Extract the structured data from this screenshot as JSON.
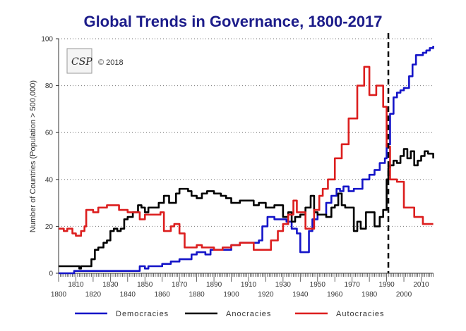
{
  "chart_data": {
    "type": "line",
    "title": "Global Trends in Governance, 1800-2017",
    "xlabel": "",
    "ylabel": "Number of Countries (Population > 500,000)",
    "xlim": [
      1800,
      2017
    ],
    "ylim": [
      0,
      100
    ],
    "x_ticks_lower": [
      "1800",
      "1820",
      "1840",
      "1860",
      "1880",
      "1900",
      "1920",
      "1940",
      "1960",
      "1980",
      "2000"
    ],
    "x_ticks_upper": [
      "1810",
      "1830",
      "1850",
      "1870",
      "1890",
      "1910",
      "1930",
      "1950",
      "1970",
      "1990",
      "2010"
    ],
    "y_ticks": [
      "0",
      "20",
      "40",
      "60",
      "80",
      "100"
    ],
    "grid": "horizontal dotted",
    "legend_position": "bottom",
    "annotations": {
      "copyright": "© 2018",
      "logo": "CSP",
      "reference_line_year": 1991
    },
    "series": [
      {
        "name": "Democracies",
        "color": "#1414c8",
        "points": [
          [
            1800,
            0
          ],
          [
            1808,
            0
          ],
          [
            1809,
            1
          ],
          [
            1845,
            1
          ],
          [
            1847,
            3
          ],
          [
            1850,
            2
          ],
          [
            1852,
            3
          ],
          [
            1860,
            4
          ],
          [
            1865,
            5
          ],
          [
            1870,
            6
          ],
          [
            1875,
            6
          ],
          [
            1877,
            8
          ],
          [
            1880,
            9
          ],
          [
            1885,
            8
          ],
          [
            1888,
            10
          ],
          [
            1895,
            10
          ],
          [
            1900,
            12
          ],
          [
            1905,
            13
          ],
          [
            1914,
            13
          ],
          [
            1916,
            14
          ],
          [
            1918,
            20
          ],
          [
            1921,
            24
          ],
          [
            1925,
            23
          ],
          [
            1932,
            22
          ],
          [
            1935,
            19
          ],
          [
            1938,
            17
          ],
          [
            1940,
            9
          ],
          [
            1943,
            9
          ],
          [
            1945,
            18
          ],
          [
            1947,
            23
          ],
          [
            1950,
            25
          ],
          [
            1953,
            25
          ],
          [
            1955,
            30
          ],
          [
            1958,
            33
          ],
          [
            1961,
            36
          ],
          [
            1963,
            35
          ],
          [
            1965,
            37
          ],
          [
            1968,
            35
          ],
          [
            1971,
            36
          ],
          [
            1974,
            36
          ],
          [
            1976,
            40
          ],
          [
            1978,
            40
          ],
          [
            1980,
            42
          ],
          [
            1983,
            44
          ],
          [
            1986,
            47
          ],
          [
            1989,
            49
          ],
          [
            1990,
            55
          ],
          [
            1992,
            68
          ],
          [
            1994,
            75
          ],
          [
            1996,
            77
          ],
          [
            1998,
            78
          ],
          [
            2000,
            79
          ],
          [
            2003,
            84
          ],
          [
            2005,
            89
          ],
          [
            2007,
            93
          ],
          [
            2009,
            93
          ],
          [
            2011,
            94
          ],
          [
            2013,
            95
          ],
          [
            2015,
            96
          ],
          [
            2017,
            97
          ]
        ]
      },
      {
        "name": "Anocracies",
        "color": "#000000",
        "points": [
          [
            1800,
            3
          ],
          [
            1811,
            3
          ],
          [
            1812,
            2
          ],
          [
            1813,
            3
          ],
          [
            1817,
            3
          ],
          [
            1819,
            6
          ],
          [
            1821,
            10
          ],
          [
            1823,
            11
          ],
          [
            1826,
            13
          ],
          [
            1828,
            14
          ],
          [
            1830,
            18
          ],
          [
            1832,
            19
          ],
          [
            1834,
            18
          ],
          [
            1836,
            19
          ],
          [
            1838,
            23
          ],
          [
            1840,
            24
          ],
          [
            1843,
            26
          ],
          [
            1846,
            29
          ],
          [
            1848,
            28
          ],
          [
            1850,
            26
          ],
          [
            1852,
            28
          ],
          [
            1855,
            28
          ],
          [
            1858,
            30
          ],
          [
            1861,
            33
          ],
          [
            1864,
            30
          ],
          [
            1866,
            30
          ],
          [
            1868,
            34
          ],
          [
            1870,
            36
          ],
          [
            1873,
            36
          ],
          [
            1875,
            35
          ],
          [
            1877,
            33
          ],
          [
            1880,
            32
          ],
          [
            1883,
            34
          ],
          [
            1886,
            35
          ],
          [
            1890,
            34
          ],
          [
            1894,
            33
          ],
          [
            1897,
            32
          ],
          [
            1900,
            30
          ],
          [
            1905,
            31
          ],
          [
            1910,
            31
          ],
          [
            1913,
            29
          ],
          [
            1916,
            30
          ],
          [
            1920,
            28
          ],
          [
            1925,
            29
          ],
          [
            1930,
            24
          ],
          [
            1933,
            26
          ],
          [
            1935,
            22
          ],
          [
            1937,
            24
          ],
          [
            1940,
            25
          ],
          [
            1943,
            28
          ],
          [
            1946,
            33
          ],
          [
            1948,
            26
          ],
          [
            1950,
            25
          ],
          [
            1953,
            25
          ],
          [
            1955,
            24
          ],
          [
            1958,
            28
          ],
          [
            1960,
            29
          ],
          [
            1962,
            34
          ],
          [
            1964,
            29
          ],
          [
            1966,
            28
          ],
          [
            1969,
            28
          ],
          [
            1971,
            18
          ],
          [
            1973,
            22
          ],
          [
            1975,
            19
          ],
          [
            1978,
            26
          ],
          [
            1980,
            26
          ],
          [
            1983,
            20
          ],
          [
            1986,
            24
          ],
          [
            1988,
            27
          ],
          [
            1990,
            40
          ],
          [
            1991,
            45
          ],
          [
            1992,
            46
          ],
          [
            1994,
            48
          ],
          [
            1996,
            47
          ],
          [
            1998,
            50
          ],
          [
            2000,
            53
          ],
          [
            2002,
            49
          ],
          [
            2004,
            52
          ],
          [
            2006,
            46
          ],
          [
            2008,
            48
          ],
          [
            2010,
            50
          ],
          [
            2012,
            52
          ],
          [
            2014,
            51
          ],
          [
            2017,
            49
          ]
        ]
      },
      {
        "name": "Autocracies",
        "color": "#dc1e1e",
        "points": [
          [
            1800,
            19
          ],
          [
            1803,
            18
          ],
          [
            1805,
            19
          ],
          [
            1808,
            17
          ],
          [
            1810,
            16
          ],
          [
            1813,
            18
          ],
          [
            1815,
            20
          ],
          [
            1816,
            27
          ],
          [
            1820,
            26
          ],
          [
            1823,
            28
          ],
          [
            1828,
            29
          ],
          [
            1833,
            29
          ],
          [
            1835,
            27
          ],
          [
            1840,
            26
          ],
          [
            1845,
            26
          ],
          [
            1847,
            23
          ],
          [
            1850,
            25
          ],
          [
            1858,
            25
          ],
          [
            1859,
            26
          ],
          [
            1861,
            18
          ],
          [
            1865,
            20
          ],
          [
            1867,
            21
          ],
          [
            1870,
            17
          ],
          [
            1873,
            11
          ],
          [
            1876,
            11
          ],
          [
            1880,
            12
          ],
          [
            1883,
            11
          ],
          [
            1888,
            11
          ],
          [
            1890,
            10
          ],
          [
            1895,
            11
          ],
          [
            1900,
            12
          ],
          [
            1905,
            13
          ],
          [
            1910,
            13
          ],
          [
            1913,
            10
          ],
          [
            1920,
            10
          ],
          [
            1923,
            14
          ],
          [
            1927,
            18
          ],
          [
            1930,
            21
          ],
          [
            1933,
            25
          ],
          [
            1936,
            31
          ],
          [
            1938,
            26
          ],
          [
            1940,
            26
          ],
          [
            1943,
            19
          ],
          [
            1945,
            19
          ],
          [
            1948,
            27
          ],
          [
            1951,
            33
          ],
          [
            1953,
            36
          ],
          [
            1956,
            40
          ],
          [
            1960,
            49
          ],
          [
            1964,
            55
          ],
          [
            1968,
            66
          ],
          [
            1973,
            80
          ],
          [
            1977,
            88
          ],
          [
            1980,
            76
          ],
          [
            1984,
            80
          ],
          [
            1988,
            71
          ],
          [
            1990,
            54
          ],
          [
            1992,
            40
          ],
          [
            1996,
            39
          ],
          [
            2000,
            28
          ],
          [
            2006,
            24
          ],
          [
            2011,
            21
          ],
          [
            2017,
            21
          ]
        ]
      }
    ]
  }
}
